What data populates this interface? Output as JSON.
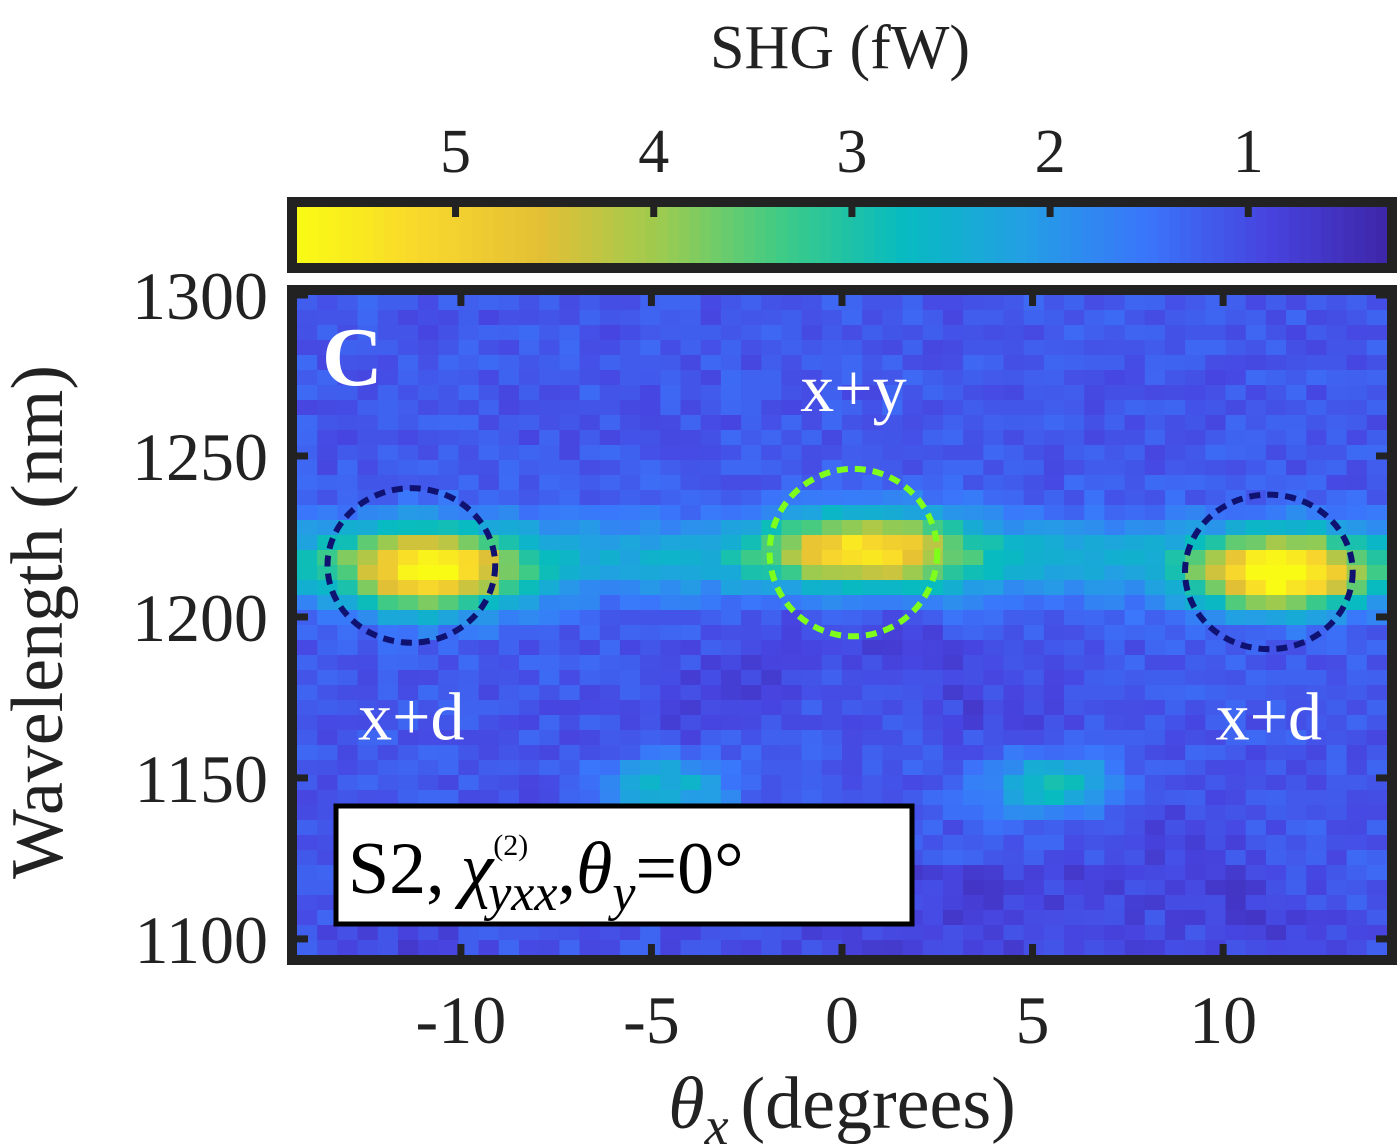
{
  "chart_data": {
    "type": "heatmap",
    "panel_label": "C",
    "xlabel_symbol": "θ",
    "xlabel_subscript": "x",
    "xlabel_unit": "(degrees)",
    "ylabel": "Wavelength (nm)",
    "xlim": [
      -14.3,
      14.3
    ],
    "ylim": [
      1095,
      1300
    ],
    "x_ticks": [
      {
        "value": -10,
        "label": "-10"
      },
      {
        "value": -5,
        "label": "-5"
      },
      {
        "value": 0,
        "label": "0"
      },
      {
        "value": 5,
        "label": "5"
      },
      {
        "value": 10,
        "label": "10"
      }
    ],
    "y_ticks": [
      {
        "value": 1100,
        "label": "1100"
      },
      {
        "value": 1150,
        "label": "1150"
      },
      {
        "value": 1200,
        "label": "1200"
      },
      {
        "value": 1250,
        "label": "1250"
      },
      {
        "value": 1300,
        "label": "1300"
      }
    ],
    "colorbar": {
      "label": "SHG (fW)",
      "range_left_to_right": [
        5.8,
        0.3
      ],
      "ticks": [
        {
          "value": 5,
          "label": "5"
        },
        {
          "value": 4,
          "label": "4"
        },
        {
          "value": 3,
          "label": "3"
        },
        {
          "value": 2,
          "label": "2"
        },
        {
          "value": 1,
          "label": "1"
        }
      ],
      "colormap": [
        "#3e26a8",
        "#4744e0",
        "#3a76fb",
        "#239fe4",
        "#07bbc0",
        "#3ecb86",
        "#9ccb4f",
        "#e4c035",
        "#f9d82c",
        "#f9fb15"
      ]
    },
    "grid": false,
    "features": [
      {
        "type": "hotspot",
        "x": -10.8,
        "y": 1214,
        "value": 4.9,
        "sx": 1.6,
        "sy": 9
      },
      {
        "type": "hotspot",
        "x": 0.6,
        "y": 1221,
        "value": 4.6,
        "sx": 1.8,
        "sy": 8
      },
      {
        "type": "hotspot",
        "x": 11.5,
        "y": 1213,
        "value": 5.4,
        "sx": 1.5,
        "sy": 8
      },
      {
        "type": "band",
        "y": 1218,
        "value": 2.6,
        "sy": 9
      },
      {
        "type": "spot",
        "x": -4.7,
        "y": 1148,
        "value": 2.7,
        "sx": 1.3,
        "sy": 7
      },
      {
        "type": "spot",
        "x": 5.6,
        "y": 1148,
        "value": 3.1,
        "sx": 1.2,
        "sy": 7
      }
    ],
    "circles": [
      {
        "x": -11.3,
        "y": 1216,
        "rx": 2.2,
        "ry": 24,
        "color": "#0f1271",
        "label": "x+d",
        "label_x": -11.3,
        "label_y": 1170
      },
      {
        "x": 0.3,
        "y": 1220,
        "rx": 2.2,
        "ry": 26,
        "color": "#7fff1c",
        "label": "x+y",
        "label_x": 0.3,
        "label_y": 1272
      },
      {
        "x": 11.2,
        "y": 1214,
        "rx": 2.2,
        "ry": 24,
        "color": "#0f1271",
        "label": "x+d",
        "label_x": 11.2,
        "label_y": 1170
      }
    ],
    "legend_box": {
      "sample": "S2,",
      "chi_symbol": "χ",
      "chi_superscript": "(2)",
      "chi_subscript": "yxx",
      "theta_symbol": "θ",
      "theta_subscript": "y",
      "theta_value": "=0°"
    }
  }
}
